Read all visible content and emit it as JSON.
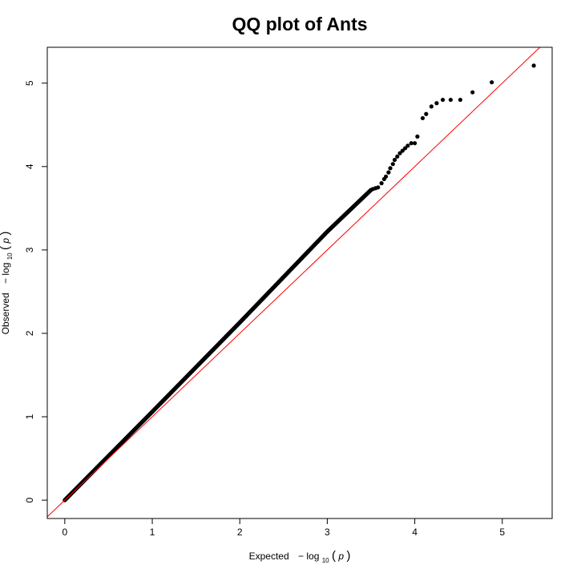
{
  "chart_data": {
    "type": "scatter",
    "title": "QQ plot of Ants",
    "xlabel": {
      "prefix": "Expected",
      "minus": "−",
      "log": "log",
      "base": "10",
      "open_paren": "(",
      "var": "p",
      "close_paren": ")"
    },
    "ylabel": {
      "prefix": "Observed",
      "minus": "−",
      "log": "log",
      "base": "10",
      "open_paren": "(",
      "var": "p",
      "close_paren": ")"
    },
    "xlim": [
      -0.2,
      5.57
    ],
    "ylim": [
      -0.22,
      5.43
    ],
    "xticks": [
      0,
      1,
      2,
      3,
      4,
      5
    ],
    "yticks": [
      0,
      1,
      2,
      3,
      4,
      5
    ],
    "xtick_labels": [
      "0",
      "1",
      "2",
      "3",
      "4",
      "5"
    ],
    "ytick_labels": [
      "0",
      "1",
      "2",
      "3",
      "4",
      "5"
    ],
    "reference_line": {
      "slope": 1,
      "intercept": 0,
      "color": "#ff0000"
    },
    "point_color": "#000000",
    "main_trend": {
      "description_points": [
        [
          0,
          0
        ],
        [
          1,
          1.06
        ],
        [
          2,
          2.13
        ],
        [
          3,
          3.22
        ],
        [
          3.5,
          3.72
        ]
      ],
      "x_start": 0,
      "x_end": 3.5
    },
    "tail_points": [
      [
        3.52,
        3.73
      ],
      [
        3.55,
        3.74
      ],
      [
        3.58,
        3.75
      ],
      [
        3.62,
        3.8
      ],
      [
        3.65,
        3.85
      ],
      [
        3.67,
        3.88
      ],
      [
        3.7,
        3.93
      ],
      [
        3.72,
        3.98
      ],
      [
        3.75,
        4.03
      ],
      [
        3.77,
        4.08
      ],
      [
        3.8,
        4.12
      ],
      [
        3.83,
        4.16
      ],
      [
        3.86,
        4.19
      ],
      [
        3.89,
        4.22
      ],
      [
        3.92,
        4.25
      ],
      [
        3.96,
        4.28
      ],
      [
        4.0,
        4.28
      ],
      [
        4.03,
        4.36
      ],
      [
        4.09,
        4.58
      ],
      [
        4.13,
        4.63
      ],
      [
        4.19,
        4.72
      ],
      [
        4.25,
        4.76
      ],
      [
        4.32,
        4.8
      ],
      [
        4.41,
        4.8
      ],
      [
        4.52,
        4.8
      ],
      [
        4.66,
        4.89
      ],
      [
        4.88,
        5.01
      ],
      [
        5.36,
        5.21
      ]
    ]
  }
}
